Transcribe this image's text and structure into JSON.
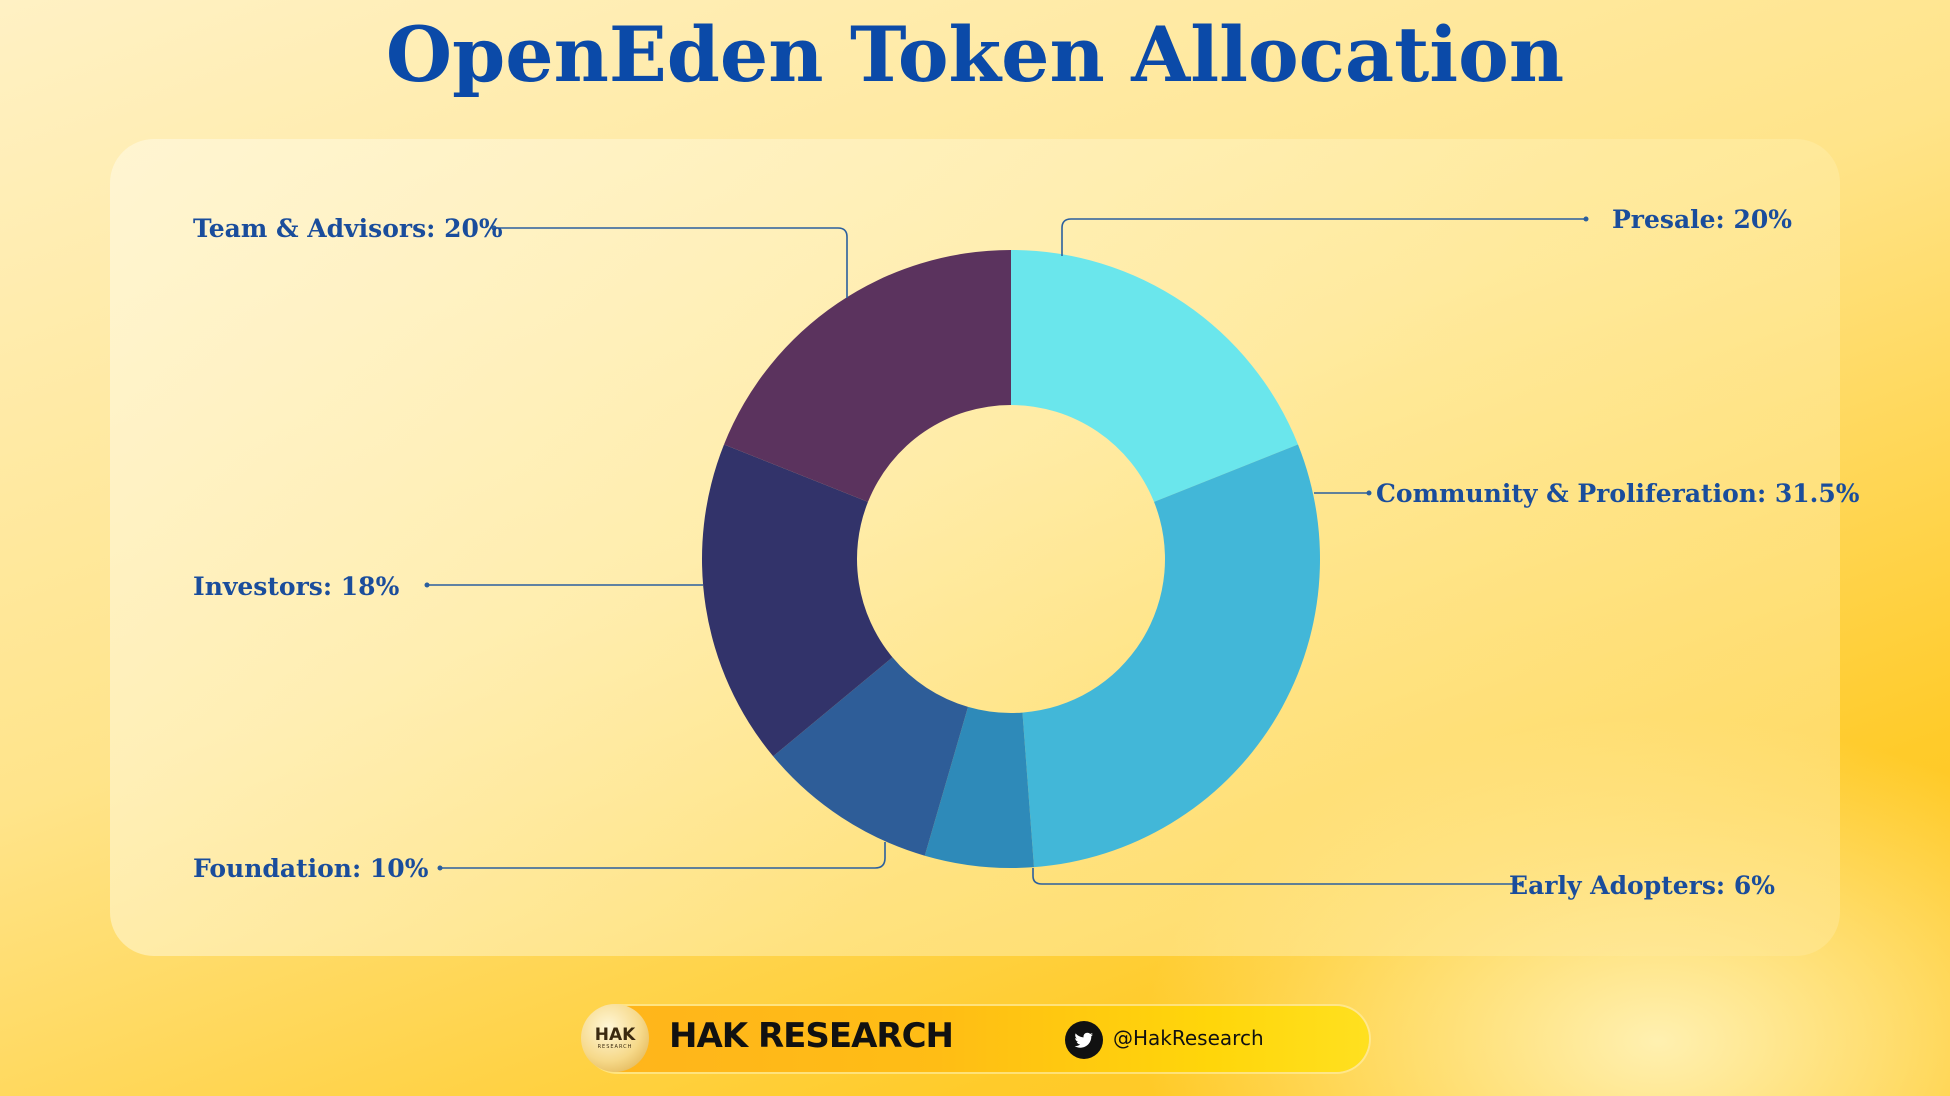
{
  "chart_data": {
    "type": "pie",
    "title": "OpenEden Token Allocation",
    "donut": true,
    "slices": [
      {
        "name": "Presale",
        "label": "Presale: 20%",
        "value": 20,
        "color": "#6ae6ec"
      },
      {
        "name": "Community & Proliferation",
        "label": "Community & Proliferation: 31.5%",
        "value": 31.5,
        "color": "#42b7d8"
      },
      {
        "name": "Early Adopters",
        "label": "Early Adopters: 6%",
        "value": 6,
        "color": "#2e8ab9"
      },
      {
        "name": "Foundation",
        "label": "Foundation: 10%",
        "value": 10,
        "color": "#2e5d98"
      },
      {
        "name": "Investors",
        "label": "Investors: 18%",
        "value": 18,
        "color": "#32336a"
      },
      {
        "name": "Team & Advisors",
        "label": "Team & Advisors: 20%",
        "value": 20,
        "color": "#5b335e"
      }
    ]
  },
  "footer": {
    "logo_text": "HAK",
    "logo_sub": "RESEARCH",
    "brand": "HAK RESEARCH",
    "handle": "@HakResearch",
    "icon": "twitter-icon"
  }
}
